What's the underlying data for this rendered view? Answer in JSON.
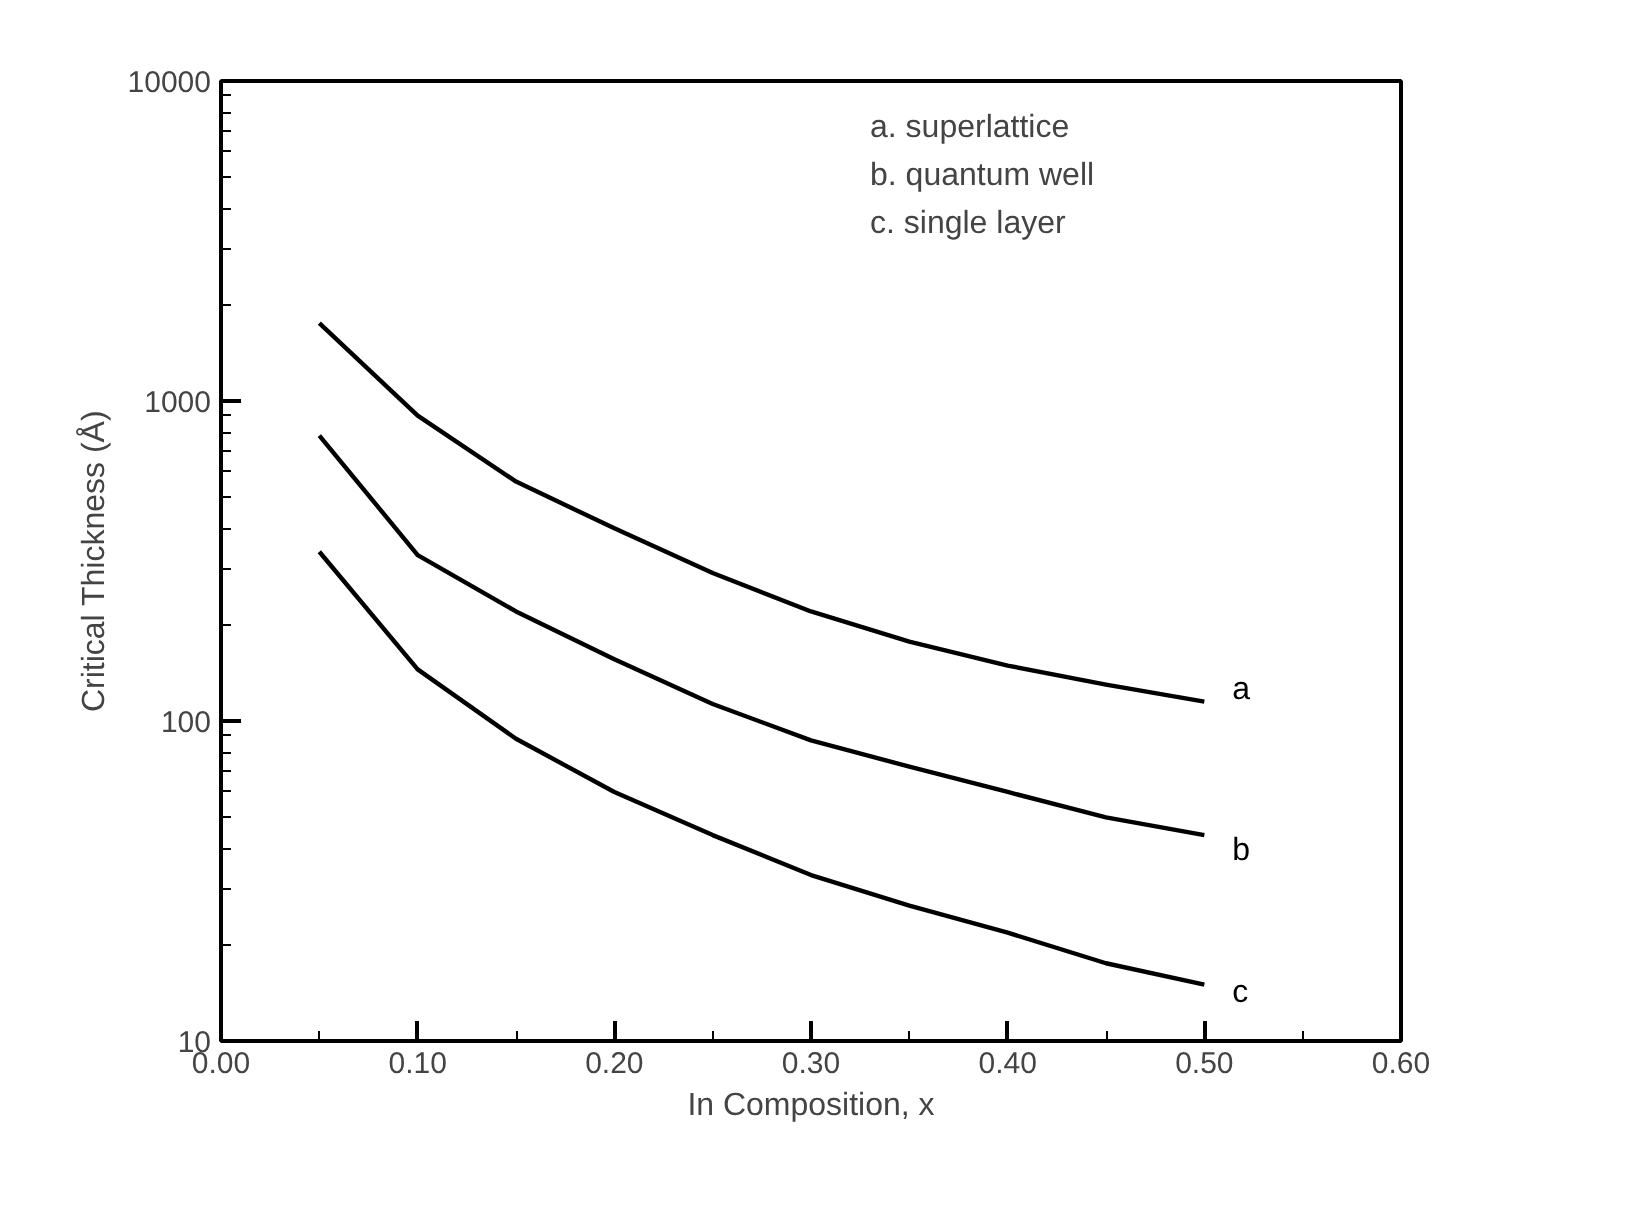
{
  "chart_data": {
    "type": "line",
    "xlabel": "In Composition, x",
    "ylabel": "Critical Thickness (Å)",
    "x": [
      0.05,
      0.1,
      0.15,
      0.2,
      0.25,
      0.3,
      0.35,
      0.4,
      0.45,
      0.5
    ],
    "series": [
      {
        "name": "a",
        "color": "#000000",
        "values": [
          1750,
          900,
          560,
          400,
          290,
          220,
          177,
          149,
          130,
          115
        ]
      },
      {
        "name": "b",
        "color": "#000000",
        "values": [
          780,
          330,
          220,
          156,
          113,
          87,
          72,
          60,
          50,
          44
        ]
      },
      {
        "name": "c",
        "color": "#000000",
        "values": [
          338,
          145,
          88,
          60,
          44,
          33,
          26.5,
          21.8,
          17.5,
          15
        ]
      }
    ],
    "annotations": [
      "a. superlattice",
      "b. quantum well",
      "c. single layer"
    ],
    "log": "y",
    "xlim": [
      0,
      0.6
    ],
    "ylim": [
      10,
      10000
    ],
    "xticks": [
      {
        "value": 0,
        "label": "0.00"
      },
      {
        "value": 0.1,
        "label": "0.10"
      },
      {
        "value": 0.2,
        "label": "0.20"
      },
      {
        "value": 0.3,
        "label": "0.30"
      },
      {
        "value": 0.4,
        "label": "0.40"
      },
      {
        "value": 0.5,
        "label": "0.50"
      },
      {
        "value": 0.6,
        "label": "0.60"
      }
    ],
    "yticks": [
      10,
      100,
      1000,
      10000
    ],
    "grid": false,
    "marker": "none",
    "line_style": "solid"
  }
}
